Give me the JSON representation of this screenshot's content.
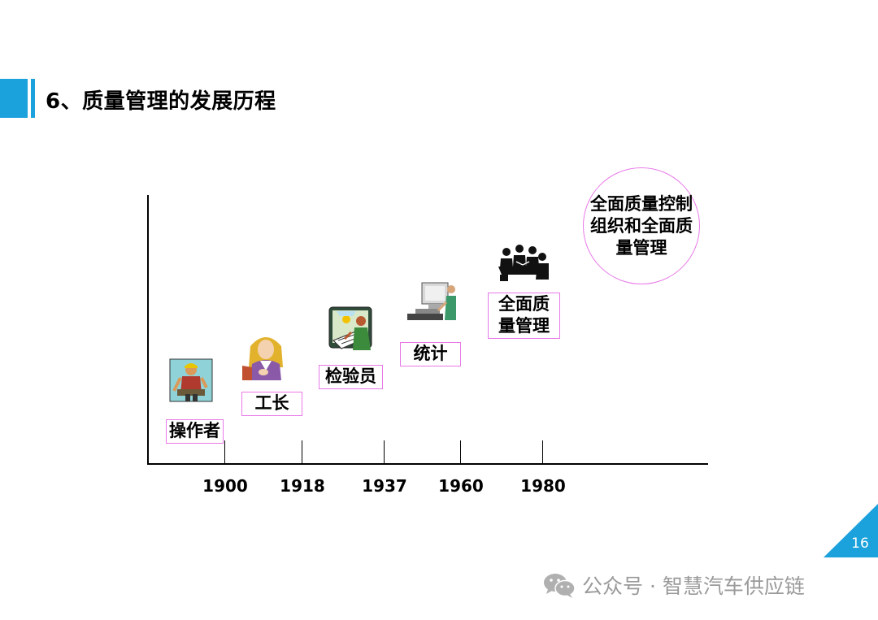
{
  "slide": {
    "title": "6、质量管理的发展历程",
    "page_number": "16"
  },
  "timeline": {
    "years": [
      "1900",
      "1918",
      "1937",
      "1960",
      "1980"
    ],
    "stages": [
      {
        "label": "操作者",
        "icon": "worker-clipart-icon"
      },
      {
        "label": "工长",
        "icon": "foreman-clipart-icon"
      },
      {
        "label": "检验员",
        "icon": "inspector-clipart-icon"
      },
      {
        "label": "统计",
        "icon": "computer-clipart-icon"
      },
      {
        "label": "全面质\n量管理",
        "icon": "meeting-clipart-icon"
      },
      {
        "label": "全面质量控制\n组织和全面质\n量管理",
        "icon": ""
      }
    ]
  },
  "watermark": {
    "icon": "wechat-icon",
    "text": "公众号 · 智慧汽车供应链"
  },
  "colors": {
    "accent": "#1ba1dc",
    "box_border": "#e879e8",
    "watermark": "#9a9a9a"
  }
}
